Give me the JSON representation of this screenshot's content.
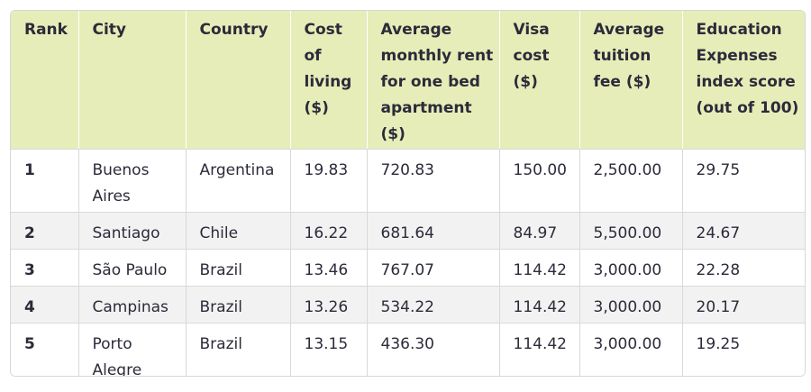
{
  "table": {
    "headers": [
      "Rank",
      "City",
      "Country",
      "Cost of living ($)",
      "Average monthly rent for one bed apartment ($)",
      "Visa cost ($)",
      "Average tuition fee ($)",
      "Education Expenses index score (out of 100)"
    ],
    "rows": [
      {
        "rank": "1",
        "city": "Buenos Aires",
        "country": "Argentina",
        "cost_of_living": "19.83",
        "rent": "720.83",
        "visa": "150.00",
        "tuition": "2,500.00",
        "score": "29.75"
      },
      {
        "rank": "2",
        "city": "Santiago",
        "country": "Chile",
        "cost_of_living": "16.22",
        "rent": "681.64",
        "visa": "84.97",
        "tuition": "5,500.00",
        "score": "24.67"
      },
      {
        "rank": "3",
        "city": "São Paulo",
        "country": "Brazil",
        "cost_of_living": "13.46",
        "rent": "767.07",
        "visa": "114.42",
        "tuition": "3,000.00",
        "score": "22.28"
      },
      {
        "rank": "4",
        "city": "Campinas",
        "country": "Brazil",
        "cost_of_living": "13.26",
        "rent": "534.22",
        "visa": "114.42",
        "tuition": "3,000.00",
        "score": "20.17"
      },
      {
        "rank": "5",
        "city": "Porto Alegre",
        "country": "Brazil",
        "cost_of_living": "13.15",
        "rent": "436.30",
        "visa": "114.42",
        "tuition": "3,000.00",
        "score": "19.25"
      }
    ]
  }
}
